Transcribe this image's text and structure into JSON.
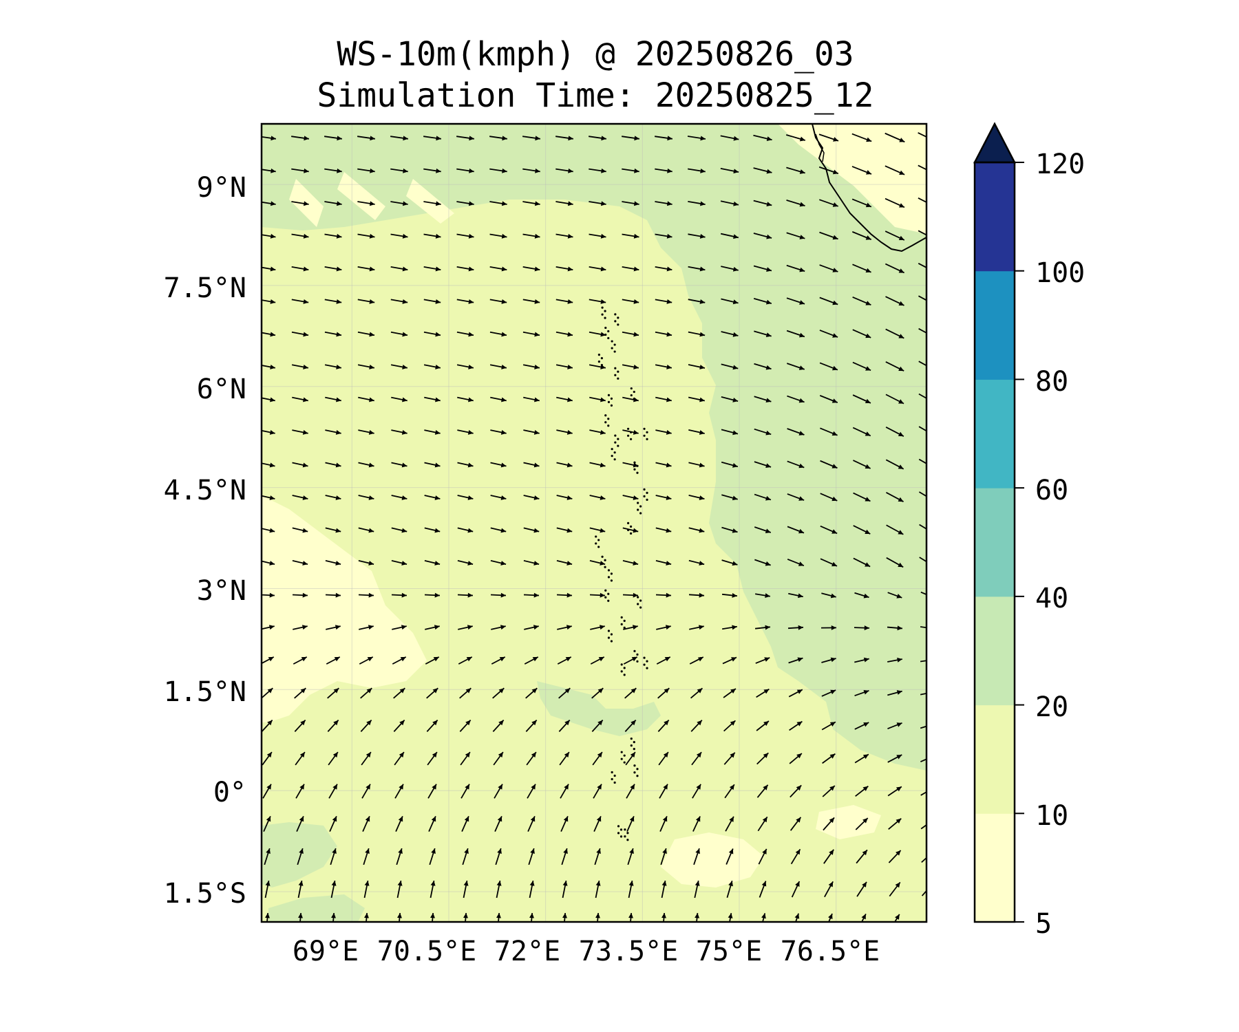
{
  "map": {
    "title": "WS-10m(kmph) @ 20250826_03",
    "subtitle": "Simulation Time: 20250825_12",
    "lat_ticks": [
      "9°N",
      "7.5°N",
      "6°N",
      "4.5°N",
      "3°N",
      "1.5°N",
      "0°",
      "1.5°S"
    ],
    "lon_ticks": [
      "69°E",
      "70.5°E",
      "72°E",
      "73.5°E",
      "75°E",
      "76.5°E"
    ],
    "extent": {
      "lon_min": 67.6,
      "lon_max": 77.9,
      "lat_min": -1.95,
      "lat_max": 9.9
    }
  },
  "colorbar": {
    "levels": [
      5,
      10,
      20,
      40,
      60,
      80,
      100,
      120
    ],
    "tick_labels": [
      "5",
      "10",
      "20",
      "40",
      "60",
      "80",
      "100",
      "120"
    ],
    "colors": [
      "#ffffcc",
      "#edf8b1",
      "#c7e9b4",
      "#7fcdbb",
      "#41b6c4",
      "#1d91c0",
      "#253494"
    ],
    "extend_color": "#0b1f4f",
    "extend": "max"
  },
  "field_colors": {
    "background": "#edf8b1",
    "calm": "#ffffcc",
    "moderate": "#d3ecb2",
    "coast_line": "#000000",
    "vector": "#000000"
  },
  "icons": [
    "wind-vector-arrow",
    "colorbar-extend-triangle"
  ]
}
